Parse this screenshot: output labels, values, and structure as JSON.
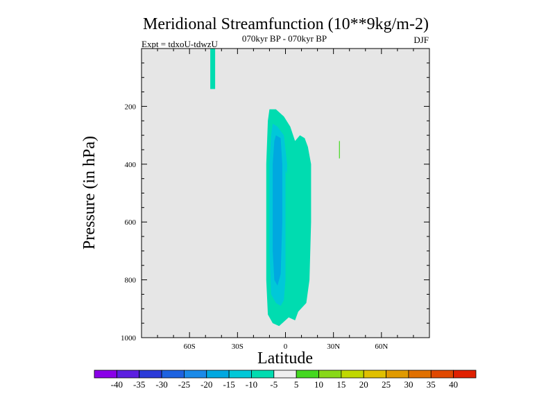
{
  "chart_data": {
    "type": "heatmap",
    "title": "Meridional Streamfunction (10**9kg/m-2)",
    "subtitle": "070kyr BP - 070kyr BP",
    "left_label": "Expt = tdxoU-tdwzU",
    "right_label": "DJF",
    "xlabel": "Latitude",
    "ylabel": "Pressure (in hPa)",
    "xlim": [
      -90,
      90
    ],
    "ylim": [
      1000,
      0
    ],
    "xticks": [
      {
        "value": -60,
        "label": "60S"
      },
      {
        "value": -30,
        "label": "30S"
      },
      {
        "value": 0,
        "label": "0"
      },
      {
        "value": 30,
        "label": "30N"
      },
      {
        "value": 60,
        "label": "60N"
      }
    ],
    "yticks": [
      {
        "value": 200,
        "label": "200"
      },
      {
        "value": 400,
        "label": "400"
      },
      {
        "value": 600,
        "label": "600"
      },
      {
        "value": 800,
        "label": "800"
      },
      {
        "value": 1000,
        "label": "1000"
      }
    ],
    "background_color": "#e6e6e6",
    "colorbar": {
      "labels": [
        "-40",
        "-35",
        "-30",
        "-25",
        "-20",
        "-15",
        "-10",
        "-5",
        "5",
        "10",
        "15",
        "20",
        "25",
        "30",
        "35",
        "40"
      ],
      "colors": [
        "#8a00e8",
        "#5c1fe0",
        "#2b3ad8",
        "#1d62e0",
        "#1a8ae8",
        "#00a8e0",
        "#00c8d8",
        "#00dcb0",
        "#eeeeee",
        "#44d820",
        "#88d818",
        "#c0d800",
        "#e0c000",
        "#e09a00",
        "#e07000",
        "#e04800",
        "#e02000"
      ]
    },
    "regions": [
      {
        "level": "-5 to -10",
        "color": "#00dcb0",
        "points": [
          [
            -47,
            0
          ],
          [
            -44,
            0
          ],
          [
            -44,
            140
          ],
          [
            -47,
            140
          ]
        ]
      },
      {
        "level": "-5 to -10",
        "color": "#00dcb0",
        "points": [
          [
            -10,
            210
          ],
          [
            -6,
            210
          ],
          [
            -1,
            235
          ],
          [
            3,
            270
          ],
          [
            6,
            320
          ],
          [
            9,
            300
          ],
          [
            12,
            310
          ],
          [
            14,
            340
          ],
          [
            16,
            400
          ],
          [
            16,
            600
          ],
          [
            15,
            800
          ],
          [
            13,
            880
          ],
          [
            8,
            910
          ],
          [
            6,
            940
          ],
          [
            2,
            930
          ],
          [
            -2,
            950
          ],
          [
            -4,
            960
          ],
          [
            -8,
            950
          ],
          [
            -11,
            920
          ],
          [
            -12,
            800
          ],
          [
            -12,
            400
          ],
          [
            -11,
            250
          ]
        ]
      },
      {
        "level": "-10 to -15",
        "color": "#00c8d8",
        "points": [
          [
            -8,
            260
          ],
          [
            -5,
            270
          ],
          [
            -1,
            300
          ],
          [
            1,
            400
          ],
          [
            0,
            600
          ],
          [
            0,
            800
          ],
          [
            -1,
            870
          ],
          [
            -3,
            890
          ],
          [
            -6,
            880
          ],
          [
            -9,
            850
          ],
          [
            -10,
            700
          ],
          [
            -10,
            400
          ],
          [
            -9,
            300
          ]
        ]
      },
      {
        "level": "-15 to -20",
        "color": "#00a8e0",
        "points": [
          [
            -6,
            300
          ],
          [
            -3,
            310
          ],
          [
            -2,
            400
          ],
          [
            -2,
            600
          ],
          [
            -3,
            780
          ],
          [
            -5,
            820
          ],
          [
            -7,
            800
          ],
          [
            -8,
            700
          ],
          [
            -8,
            400
          ],
          [
            -7,
            320
          ]
        ]
      },
      {
        "level": "-5 to -10",
        "color": "#00dcb0",
        "points": [
          [
            0,
            420
          ],
          [
            3,
            470
          ],
          [
            5,
            600
          ],
          [
            6,
            750
          ],
          [
            5,
            850
          ],
          [
            2,
            860
          ],
          [
            0,
            750
          ],
          [
            0,
            500
          ]
        ]
      },
      {
        "level": "5 to 10",
        "color": "#44d820",
        "points": [
          [
            33.5,
            320
          ],
          [
            34,
            320
          ],
          [
            34,
            380
          ],
          [
            33.5,
            380
          ]
        ]
      }
    ]
  }
}
